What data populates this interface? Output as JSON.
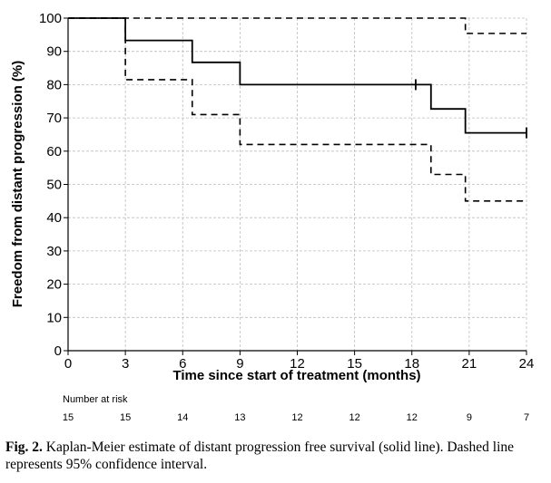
{
  "chart_data": {
    "type": "line",
    "title": "",
    "xlabel": "Time since start of treatment (months)",
    "ylabel": "Freedom from distant progression (%)",
    "xlim": [
      0,
      24
    ],
    "ylim": [
      0,
      100
    ],
    "xticks": [
      0,
      3,
      6,
      9,
      12,
      15,
      18,
      21,
      24
    ],
    "yticks": [
      0,
      10,
      20,
      30,
      40,
      50,
      60,
      70,
      80,
      90,
      100
    ],
    "grid": true,
    "series": [
      {
        "style": "solid",
        "steps": [
          [
            0,
            100
          ],
          [
            3,
            93.3
          ],
          [
            6.5,
            86.7
          ],
          [
            9,
            80
          ],
          [
            19,
            72.7
          ],
          [
            20.8,
            65.5
          ],
          [
            24,
            65.5
          ]
        ],
        "censor_times": [
          18.2,
          24
        ]
      },
      {
        "style": "dashed",
        "steps": [
          [
            0,
            100
          ],
          [
            20.8,
            95.4
          ],
          [
            24,
            95.4
          ]
        ]
      },
      {
        "style": "dashed",
        "steps": [
          [
            0,
            100
          ],
          [
            3,
            81.5
          ],
          [
            6.5,
            71
          ],
          [
            9,
            62
          ],
          [
            19,
            53
          ],
          [
            20.8,
            45
          ],
          [
            24,
            45
          ]
        ]
      }
    ],
    "risk_table": {
      "label": "Number at risk",
      "times": [
        0,
        3,
        6,
        9,
        12,
        15,
        18,
        21,
        24
      ],
      "counts": [
        "15",
        "15",
        "14",
        "13",
        "12",
        "12",
        "12",
        "9",
        "7"
      ]
    }
  },
  "caption": {
    "label": "Fig. 2.",
    "text": " Kaplan-Meier estimate of distant progression free survival (solid line). Dashed line represents 95% confidence interval."
  }
}
